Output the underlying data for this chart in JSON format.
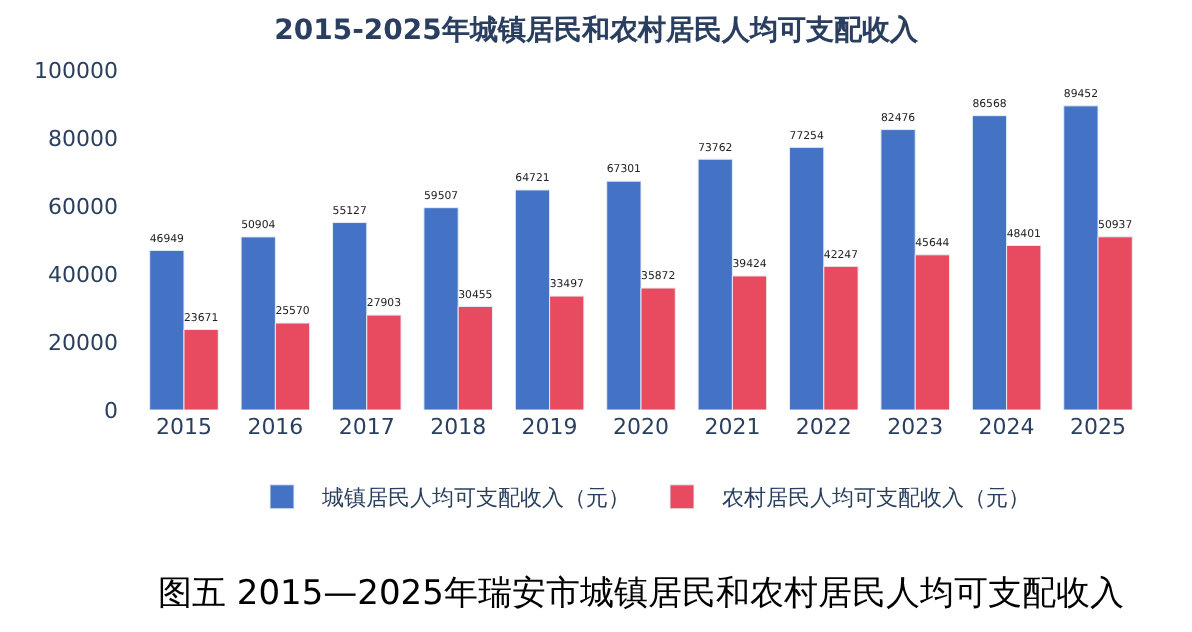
{
  "chart_data": {
    "type": "bar",
    "title": "2015-2025年城镇居民和农村居民人均可支配收入",
    "categories": [
      "2015",
      "2016",
      "2017",
      "2018",
      "2019",
      "2020",
      "2021",
      "2022",
      "2023",
      "2024",
      "2025"
    ],
    "series": [
      {
        "name": "城镇居民人均可支配收入（元）",
        "color": "#4472c4",
        "values": [
          46949,
          50904,
          55127,
          59507,
          64721,
          67301,
          73762,
          77254,
          82476,
          86568,
          89452
        ]
      },
      {
        "name": "农村居民人均可支配收入（元）",
        "color": "#e84a5f",
        "values": [
          23671,
          25570,
          27903,
          30455,
          33497,
          35872,
          39424,
          42247,
          45644,
          48401,
          50937
        ]
      }
    ],
    "ylim": [
      0,
      100000
    ],
    "yticks": [
      0,
      20000,
      40000,
      60000,
      80000,
      100000
    ],
    "data_labels": true,
    "legend": "bottom",
    "annotations": [
      "图五 2015—2025年瑞安市城镇居民和农村居民人均可支配收入"
    ]
  }
}
